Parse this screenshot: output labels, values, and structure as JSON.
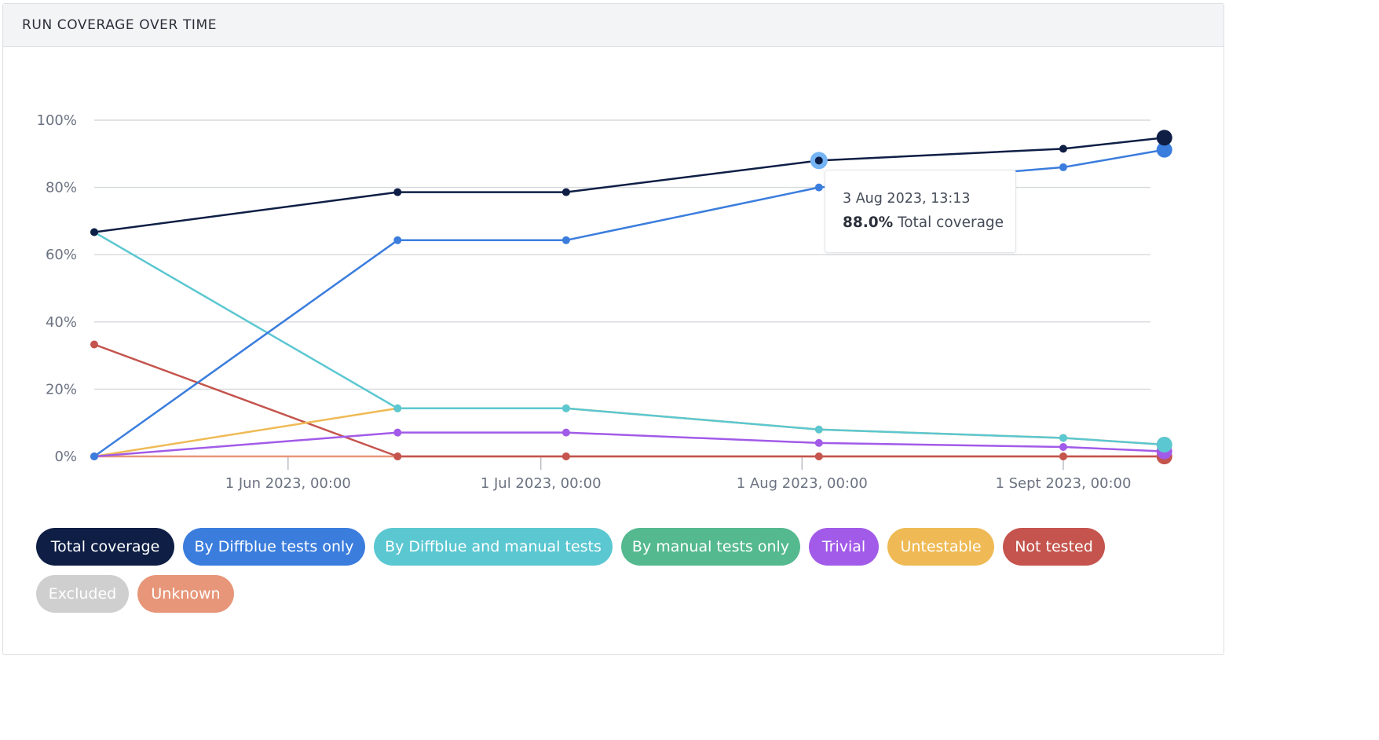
{
  "panel": {
    "title": "RUN COVERAGE OVER TIME"
  },
  "tooltip": {
    "date": "3 Aug 2023, 13:13",
    "value": "88.0%",
    "series": "Total coverage"
  },
  "legend": [
    {
      "label": "Total coverage",
      "color": "#0e1e45",
      "text_color": "#ffffff"
    },
    {
      "label": "By Diffblue tests only",
      "color": "#3b7ddd",
      "text_color": "#ffffff"
    },
    {
      "label": "By Diffblue and manual tests",
      "color": "#5bc7d1",
      "text_color": "#ffffff"
    },
    {
      "label": "By manual tests only",
      "color": "#55b98f",
      "text_color": "#ffffff"
    },
    {
      "label": "Trivial",
      "color": "#a25be8",
      "text_color": "#ffffff"
    },
    {
      "label": "Untestable",
      "color": "#efba55",
      "text_color": "#ffffff"
    },
    {
      "label": "Not tested",
      "color": "#c4544d",
      "text_color": "#ffffff"
    },
    {
      "label": "Excluded",
      "color": "#cfcfcf",
      "text_color": "#ffffff"
    },
    {
      "label": "Unknown",
      "color": "#e79679",
      "text_color": "#ffffff"
    }
  ],
  "chart_data": {
    "type": "line",
    "title": "RUN COVERAGE OVER TIME",
    "xlabel": "",
    "ylabel": "",
    "x": [
      "2023-05-09",
      "2023-06-14",
      "2023-07-04",
      "2023-08-03",
      "2023-09-01",
      "2023-09-13"
    ],
    "x_ticks": [
      {
        "date": "2023-06-01",
        "label": "1 Jun 2023, 00:00"
      },
      {
        "date": "2023-07-01",
        "label": "1 Jul 2023, 00:00"
      },
      {
        "date": "2023-08-01",
        "label": "1 Aug 2023, 00:00"
      },
      {
        "date": "2023-09-01",
        "label": "1 Sept 2023, 00:00"
      }
    ],
    "y_ticks": [
      "0%",
      "20%",
      "40%",
      "60%",
      "80%",
      "100%"
    ],
    "ylim": [
      0,
      100
    ],
    "grid": true,
    "legend_position": "bottom",
    "highlighted": {
      "series": "Total coverage",
      "x": "2023-08-03"
    },
    "series": [
      {
        "name": "Total coverage",
        "color": "#0e1e45",
        "values": [
          66.7,
          78.6,
          78.6,
          88.0,
          91.5,
          94.8
        ]
      },
      {
        "name": "By Diffblue tests only",
        "color": "#3b7ddd",
        "values": [
          0,
          64.3,
          64.3,
          80.0,
          86.0,
          91.2
        ]
      },
      {
        "name": "By Diffblue and manual tests",
        "color": "#5bc7d1",
        "values": [
          66.7,
          14.3,
          14.3,
          8.0,
          5.5,
          3.5
        ]
      },
      {
        "name": "Trivial",
        "color": "#a25be8",
        "values": [
          0,
          7.1,
          7.1,
          4.0,
          2.8,
          1.5
        ]
      },
      {
        "name": "Untestable",
        "color": "#efba55",
        "values": [
          0,
          14.3,
          14.3,
          8.0,
          5.5,
          3.5
        ]
      },
      {
        "name": "Not tested",
        "color": "#c4544d",
        "values": [
          33.3,
          0,
          0,
          0,
          0,
          0
        ]
      },
      {
        "name": "Unknown",
        "color": "#e79679",
        "values": [
          0,
          0,
          0,
          0,
          0,
          0
        ]
      }
    ]
  }
}
